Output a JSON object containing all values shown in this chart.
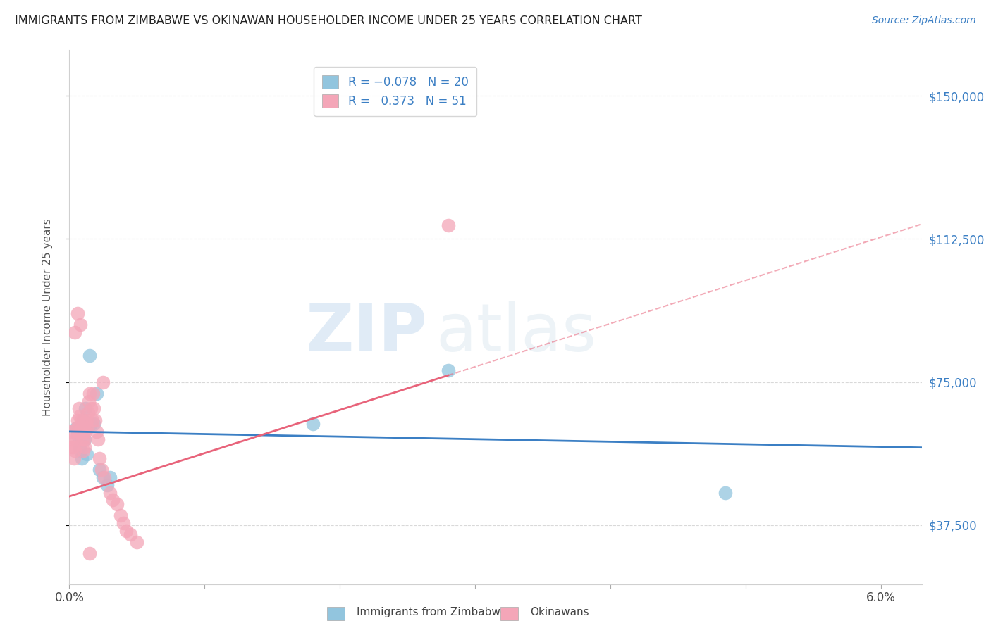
{
  "title": "IMMIGRANTS FROM ZIMBABWE VS OKINAWAN HOUSEHOLDER INCOME UNDER 25 YEARS CORRELATION CHART",
  "source": "Source: ZipAtlas.com",
  "ylabel": "Householder Income Under 25 years",
  "xlim": [
    0.0,
    0.063
  ],
  "ylim": [
    22000,
    162000
  ],
  "yticks": [
    37500,
    75000,
    112500,
    150000
  ],
  "ytick_labels": [
    "$37,500",
    "$75,000",
    "$112,500",
    "$150,000"
  ],
  "xticks": [
    0.0,
    0.01,
    0.02,
    0.03,
    0.04,
    0.05,
    0.06
  ],
  "xtick_labels": [
    "0.0%",
    "",
    "",
    "",
    "",
    "",
    "6.0%"
  ],
  "blue_R": -0.078,
  "blue_N": 20,
  "pink_R": 0.373,
  "pink_N": 51,
  "blue_color": "#92c5de",
  "pink_color": "#f4a6b8",
  "blue_line_color": "#3b7fc4",
  "pink_line_color": "#e8637a",
  "watermark_zip": "ZIP",
  "watermark_atlas": "atlas",
  "background_color": "#ffffff",
  "blue_scatter_x": [
    0.0005,
    0.0006,
    0.00075,
    0.0008,
    0.0009,
    0.001,
    0.0011,
    0.0012,
    0.0013,
    0.0015,
    0.0016,
    0.0018,
    0.002,
    0.0022,
    0.0025,
    0.0028,
    0.003,
    0.028,
    0.0485,
    0.018
  ],
  "blue_scatter_y": [
    63000,
    61000,
    58000,
    57000,
    55000,
    65000,
    60000,
    68000,
    56000,
    82000,
    64000,
    64000,
    72000,
    52000,
    50000,
    48000,
    50000,
    78000,
    46000,
    64000
  ],
  "pink_scatter_x": [
    0.00015,
    0.0002,
    0.00025,
    0.0003,
    0.00035,
    0.0004,
    0.0005,
    0.00055,
    0.0006,
    0.00065,
    0.0007,
    0.00075,
    0.0008,
    0.00085,
    0.0009,
    0.00095,
    0.001,
    0.00105,
    0.0011,
    0.00115,
    0.0012,
    0.00125,
    0.0013,
    0.00135,
    0.0014,
    0.00145,
    0.0015,
    0.0016,
    0.0017,
    0.00175,
    0.0018,
    0.0019,
    0.002,
    0.0021,
    0.0022,
    0.0024,
    0.0026,
    0.003,
    0.0032,
    0.0035,
    0.0038,
    0.004,
    0.0042,
    0.0045,
    0.005,
    0.0006,
    0.0008,
    0.0004,
    0.028,
    0.0025,
    0.0015
  ],
  "pink_scatter_y": [
    62000,
    58000,
    60000,
    58000,
    55000,
    57000,
    60000,
    63000,
    65000,
    62000,
    68000,
    66000,
    62000,
    65000,
    63000,
    60000,
    57000,
    62000,
    60000,
    58000,
    62000,
    64000,
    65000,
    63000,
    67000,
    70000,
    72000,
    68000,
    65000,
    72000,
    68000,
    65000,
    62000,
    60000,
    55000,
    52000,
    50000,
    46000,
    44000,
    43000,
    40000,
    38000,
    36000,
    35000,
    33000,
    93000,
    90000,
    88000,
    116000,
    75000,
    30000
  ]
}
